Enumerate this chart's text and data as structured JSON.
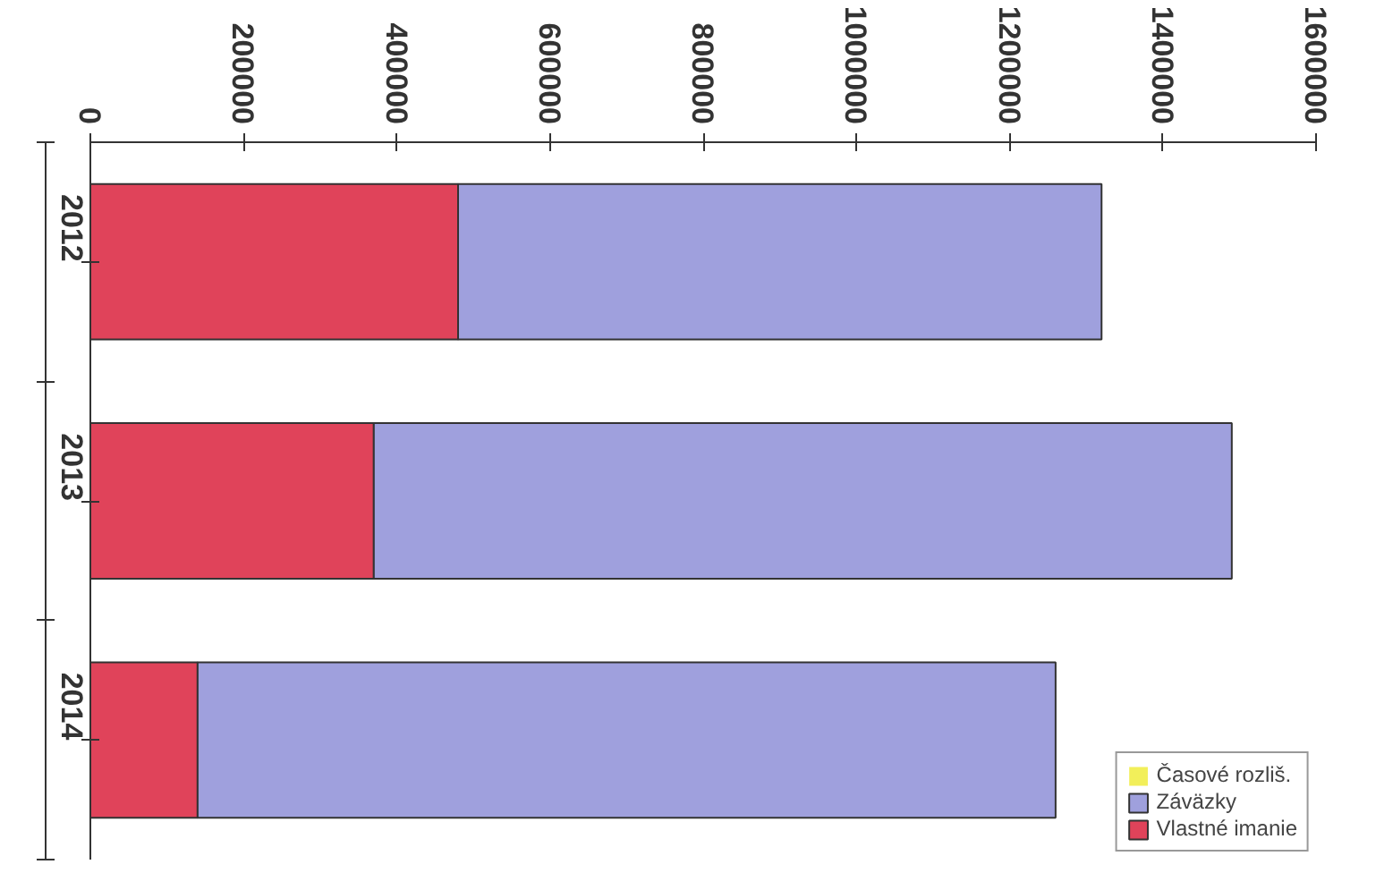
{
  "chart_data": {
    "type": "bar",
    "orientation": "horizontal",
    "stacked": true,
    "categories": [
      "2012",
      "2013",
      "2014"
    ],
    "series": [
      {
        "name": "Vlastné imanie",
        "color": "#e0435a",
        "values": [
          480000,
          370000,
          140000
        ]
      },
      {
        "name": "Záväzky",
        "color": "#9fa0dd",
        "values": [
          840000,
          1120000,
          1120000
        ]
      },
      {
        "name": "Časové rozliš.",
        "color": "#f2ef5a",
        "values": [
          0,
          0,
          0
        ]
      }
    ],
    "xlim": [
      0,
      1600000
    ],
    "xticks": [
      0,
      200000,
      400000,
      600000,
      800000,
      1000000,
      1200000,
      1400000,
      1600000
    ],
    "grid": false,
    "legend": "bottom right"
  }
}
